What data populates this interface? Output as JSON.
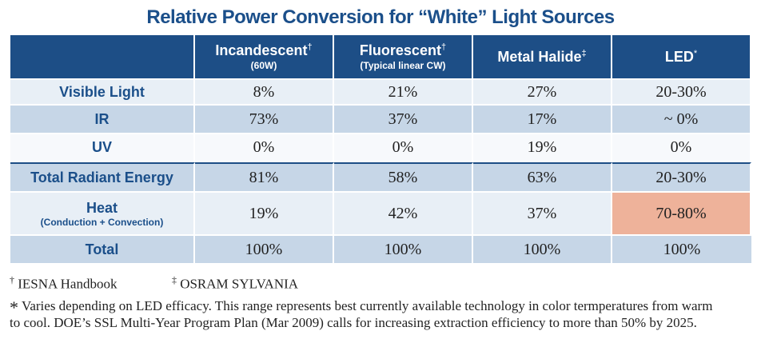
{
  "title": "Relative Power Conversion for “White” Light Sources",
  "columns": [
    {
      "main": "Incandescent",
      "mark": "†",
      "sub": "(60W)"
    },
    {
      "main": "Fluorescent",
      "mark": "†",
      "sub": "(Typical linear CW)"
    },
    {
      "main": "Metal Halide",
      "mark": "‡",
      "sub": ""
    },
    {
      "main": "LED",
      "mark": "*",
      "sub": ""
    }
  ],
  "rows": [
    {
      "label": "Visible Light",
      "sub": "",
      "values": [
        "8%",
        "21%",
        "27%",
        "20-30%"
      ]
    },
    {
      "label": "IR",
      "sub": "",
      "values": [
        "73%",
        "37%",
        "17%",
        "~ 0%"
      ]
    },
    {
      "label": "UV",
      "sub": "",
      "values": [
        "0%",
        "0%",
        "19%",
        "0%"
      ]
    },
    {
      "label": "Total Radiant Energy",
      "sub": "",
      "values": [
        "81%",
        "58%",
        "63%",
        "20-30%"
      ]
    },
    {
      "label": "Heat",
      "sub": "(Conduction + Convection)",
      "values": [
        "19%",
        "42%",
        "37%",
        "70-80%"
      ]
    },
    {
      "label": "Total",
      "sub": "",
      "values": [
        "100%",
        "100%",
        "100%",
        "100%"
      ]
    }
  ],
  "footnotes": {
    "dagger_mark": "†",
    "dagger_text": "IESNA Handbook",
    "ddagger_mark": "‡",
    "ddagger_text": "OSRAM SYLVANIA",
    "star_mark": "*",
    "star_text": "Varies depending on LED efficacy. This range represents best currently available technology in color termperatures from warm",
    "star_text2": "to cool. DOE’s SSL Multi-Year Program Plan (Mar 2009) calls for increasing extraction efficiency to more than 50% by 2025."
  },
  "colors": {
    "header": "#1d4e86",
    "highlight": "#eeb29a",
    "title": "#1b4f8a"
  }
}
